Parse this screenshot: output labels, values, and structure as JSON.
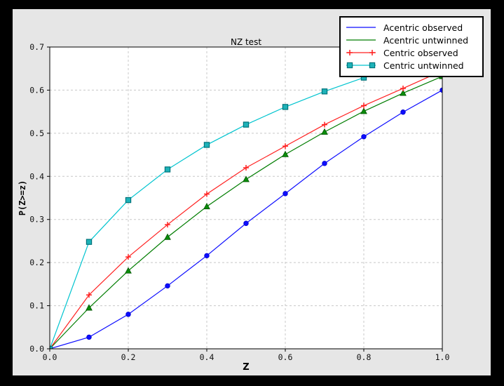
{
  "window": {
    "background_color": "#000000",
    "figure_background": "#e6e6e6",
    "plot_background": "#ffffff",
    "grid_color": "#c8c8c8"
  },
  "chart_data": {
    "type": "line",
    "title": "NZ test",
    "xlabel": "Z",
    "ylabel": "P(Z>=z)",
    "xlim": [
      0.0,
      1.0
    ],
    "ylim": [
      0.0,
      0.7
    ],
    "xticks": [
      0.0,
      0.2,
      0.4,
      0.6,
      0.8,
      1.0
    ],
    "yticks": [
      0.0,
      0.1,
      0.2,
      0.3,
      0.4,
      0.5,
      0.6,
      0.7
    ],
    "grid": "dashed",
    "legend_position": "upper right",
    "x": [
      0.0,
      0.1,
      0.2,
      0.3,
      0.4,
      0.5,
      0.6,
      0.7,
      0.8,
      0.9,
      1.0
    ],
    "series": [
      {
        "name": "Acentric observed",
        "color": "#0d0dff",
        "marker": "circle",
        "marker_face": "#0d0dff",
        "marker_edge": "#0000cc",
        "legend_marker": "none",
        "values": [
          0.0,
          0.027,
          0.08,
          0.146,
          0.216,
          0.291,
          0.36,
          0.43,
          0.492,
          0.549,
          0.6
        ]
      },
      {
        "name": "Acentric untwinned",
        "color": "#007d00",
        "marker": "triangle",
        "marker_face": "#0a8c0a",
        "marker_edge": "#005500",
        "legend_marker": "none",
        "values": [
          0.0,
          0.095,
          0.181,
          0.259,
          0.33,
          0.393,
          0.451,
          0.503,
          0.551,
          0.593,
          0.632
        ]
      },
      {
        "name": "Centric observed",
        "color": "#ff2020",
        "marker": "plus",
        "marker_face": "#ff2020",
        "marker_edge": "#ff2020",
        "legend_marker": "plus",
        "values": [
          0.0,
          0.125,
          0.213,
          0.288,
          0.359,
          0.42,
          0.47,
          0.52,
          0.564,
          0.604,
          0.645
        ]
      },
      {
        "name": "Centric untwinned",
        "color": "#00c4cf",
        "marker": "square",
        "marker_face": "#1db2b8",
        "marker_edge": "#00737a",
        "legend_marker": "square",
        "values": [
          0.0,
          0.248,
          0.345,
          0.416,
          0.473,
          0.52,
          0.561,
          0.597,
          0.629,
          0.657,
          0.683
        ]
      }
    ]
  }
}
